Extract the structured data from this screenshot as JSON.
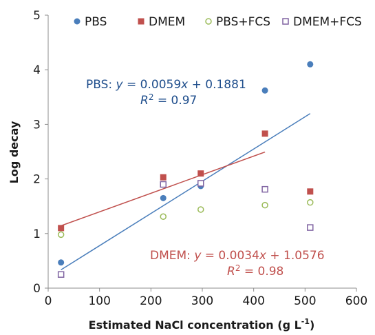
{
  "chart_data": {
    "type": "scatter",
    "title": "",
    "xlabel": "Estimated NaCl concentration (g L",
    "xlabel_sup": "-1",
    "xlabel_close": ")",
    "ylabel": "Log decay",
    "xlim": [
      0,
      600
    ],
    "ylim": [
      0,
      5
    ],
    "xticks": [
      0,
      100,
      200,
      300,
      400,
      500,
      600
    ],
    "yticks": [
      0,
      1,
      2,
      3,
      4,
      5
    ],
    "grid": false,
    "legend_position": "top",
    "series": [
      {
        "name": "PBS",
        "marker": "circle-filled",
        "color": "#4a7ebb",
        "x": [
          25,
          224,
          297,
          422,
          510
        ],
        "y": [
          0.47,
          1.65,
          1.87,
          3.62,
          4.1
        ]
      },
      {
        "name": "DMEM",
        "marker": "square-filled",
        "color": "#c0504d",
        "x": [
          25,
          224,
          297,
          422,
          510
        ],
        "y": [
          1.1,
          2.03,
          2.1,
          2.83,
          1.77
        ]
      },
      {
        "name": "PBS+FCS",
        "marker": "circle-open",
        "color": "#9bbb59",
        "x": [
          25,
          224,
          297,
          422,
          510
        ],
        "y": [
          0.98,
          1.31,
          1.44,
          1.52,
          1.57
        ]
      },
      {
        "name": "DMEM+FCS",
        "marker": "square-open",
        "color": "#8064a2",
        "x": [
          25,
          224,
          297,
          422,
          510
        ],
        "y": [
          0.25,
          1.9,
          1.92,
          1.81,
          1.11
        ]
      }
    ],
    "trendlines": [
      {
        "series": "PBS",
        "color": "#4a7ebb",
        "x": [
          25,
          510
        ],
        "y": [
          0.3356,
          3.1971
        ]
      },
      {
        "series": "DMEM",
        "color": "#c0504d",
        "x": [
          25,
          422
        ],
        "y": [
          1.1426,
          2.4924
        ]
      }
    ],
    "annotations": [
      {
        "lines": [
          [
            {
              "t": "PBS: ",
              "i": false
            },
            {
              "t": "y",
              "i": true
            },
            {
              "t": " = 0.0059",
              "i": false
            },
            {
              "t": "x",
              "i": true
            },
            {
              "t": " + 0.1881",
              "i": false
            }
          ],
          [
            {
              "t": "R",
              "i": true
            },
            {
              "t": "2",
              "sup": true
            },
            {
              "t": " = 0.97",
              "i": false
            }
          ]
        ],
        "color": "#1f4e8c"
      },
      {
        "lines": [
          [
            {
              "t": "DMEM: ",
              "i": false
            },
            {
              "t": "y",
              "i": true
            },
            {
              "t": " = 0.0034",
              "i": false
            },
            {
              "t": "x",
              "i": true
            },
            {
              "t": " + 1.0576",
              "i": false
            }
          ],
          [
            {
              "t": "R",
              "i": true
            },
            {
              "t": "2",
              "sup": true
            },
            {
              "t": " = 0.98",
              "i": false
            }
          ]
        ],
        "color": "#c0504d"
      }
    ]
  }
}
